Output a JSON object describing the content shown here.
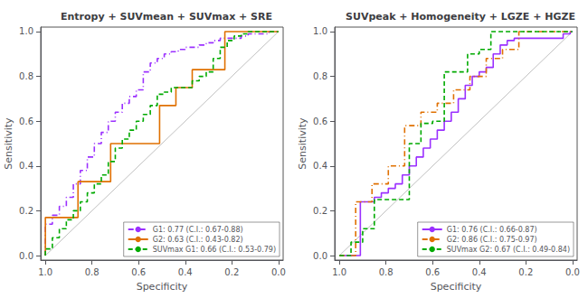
{
  "chart_data": [
    {
      "type": "step",
      "title": "Entropy + SUVmean + SUVmax + SRE",
      "xlabel": "Specificity",
      "ylabel": "Sensitivity",
      "xlim": [
        1.02,
        -0.02
      ],
      "ylim": [
        -0.02,
        1.02
      ],
      "xticks": [
        {
          "value": 1,
          "label": "1.0"
        },
        0.8,
        0.6,
        0.4,
        0.2,
        {
          "value": 0,
          "label": "0.0"
        }
      ],
      "yticks": [
        {
          "value": 0,
          "label": "0.0"
        },
        0.2,
        0.4,
        0.6,
        0.8,
        {
          "value": 1,
          "label": "1.0"
        }
      ],
      "grid": false,
      "legend": "lower right",
      "diagonal": {
        "x": [
          1,
          0
        ],
        "values": [
          0,
          1
        ],
        "color": "#C0C0C0"
      },
      "series": [
        {
          "name": "G1: 0.77 (C.I.: 0.67-0.88)",
          "color": "#9B30FF",
          "line_style": "dashdot",
          "x": [
            1.0,
            0.97,
            0.94,
            0.91,
            0.88,
            0.85,
            0.82,
            0.79,
            0.76,
            0.73,
            0.7,
            0.67,
            0.64,
            0.61,
            0.58,
            0.55,
            0.52,
            0.49,
            0.46,
            0.43,
            0.4,
            0.37,
            0.34,
            0.31,
            0.28,
            0.25,
            0.22,
            0.19,
            0.16,
            0.13,
            0.1,
            0.07,
            0.04,
            0.01,
            0.0
          ],
          "values": [
            0.0,
            0.14,
            0.18,
            0.22,
            0.26,
            0.32,
            0.38,
            0.44,
            0.5,
            0.55,
            0.6,
            0.64,
            0.68,
            0.71,
            0.74,
            0.82,
            0.86,
            0.88,
            0.9,
            0.91,
            0.92,
            0.93,
            0.93,
            0.94,
            0.95,
            0.96,
            0.97,
            0.97,
            0.97,
            0.98,
            0.99,
            0.99,
            0.99,
            1.0,
            1.0
          ]
        },
        {
          "name": "G2: 0.63 (C.I.: 0.43-0.82)",
          "color": "#E07000",
          "line_style": "solid",
          "x": [
            1.0,
            0.93,
            0.86,
            0.79,
            0.72,
            0.65,
            0.58,
            0.51,
            0.44,
            0.37,
            0.3,
            0.23,
            0.16,
            0.09,
            0.02,
            0.0
          ],
          "values": [
            0.0,
            0.17,
            0.17,
            0.33,
            0.33,
            0.5,
            0.5,
            0.5,
            0.67,
            0.75,
            0.83,
            0.83,
            1.0,
            1.0,
            1.0,
            1.0
          ]
        },
        {
          "name": "SUVmax G1: 0.66 (C.I.: 0.53-0.79)",
          "color": "#00AA00",
          "line_style": "dashed",
          "x": [
            1.0,
            0.97,
            0.94,
            0.91,
            0.88,
            0.85,
            0.82,
            0.79,
            0.76,
            0.73,
            0.7,
            0.67,
            0.64,
            0.61,
            0.58,
            0.55,
            0.52,
            0.49,
            0.46,
            0.43,
            0.4,
            0.37,
            0.34,
            0.31,
            0.28,
            0.25,
            0.22,
            0.19,
            0.16,
            0.13,
            0.1,
            0.07,
            0.04,
            0.01,
            0.0
          ],
          "values": [
            0.0,
            0.03,
            0.08,
            0.12,
            0.16,
            0.2,
            0.24,
            0.28,
            0.32,
            0.36,
            0.42,
            0.48,
            0.52,
            0.56,
            0.6,
            0.63,
            0.67,
            0.72,
            0.73,
            0.75,
            0.75,
            0.75,
            0.78,
            0.8,
            0.82,
            0.88,
            0.93,
            0.96,
            0.98,
            0.99,
            1.0,
            1.0,
            1.0,
            1.0,
            1.0
          ]
        }
      ]
    },
    {
      "type": "step",
      "title": "SUVpeak + Homogeneity + LGZE + HGZE",
      "xlabel": "Specificity",
      "ylabel": "Sensitivity",
      "xlim": [
        1.02,
        -0.02
      ],
      "ylim": [
        -0.02,
        1.02
      ],
      "xticks": [
        {
          "value": 1,
          "label": "1.0"
        },
        0.8,
        0.6,
        0.4,
        0.2,
        {
          "value": 0,
          "label": "0.0"
        }
      ],
      "yticks": [
        {
          "value": 0,
          "label": "0.0"
        },
        0.2,
        0.4,
        0.6,
        0.8,
        {
          "value": 1,
          "label": "1.0"
        }
      ],
      "grid": false,
      "legend": "lower right",
      "diagonal": {
        "x": [
          1,
          0
        ],
        "values": [
          0,
          1
        ],
        "color": "#C0C0C0"
      },
      "series": [
        {
          "name": "G1: 0.76 (C.I.: 0.66-0.87)",
          "color": "#9B30FF",
          "line_style": "solid",
          "x": [
            1.0,
            0.97,
            0.94,
            0.91,
            0.88,
            0.85,
            0.82,
            0.79,
            0.76,
            0.73,
            0.7,
            0.67,
            0.64,
            0.61,
            0.58,
            0.55,
            0.52,
            0.49,
            0.46,
            0.43,
            0.4,
            0.37,
            0.34,
            0.31,
            0.28,
            0.25,
            0.22,
            0.19,
            0.16,
            0.13,
            0.1,
            0.07,
            0.04,
            0.01,
            0.0
          ],
          "values": [
            0.0,
            0.0,
            0.0,
            0.0,
            0.24,
            0.24,
            0.26,
            0.28,
            0.3,
            0.32,
            0.36,
            0.4,
            0.44,
            0.48,
            0.52,
            0.56,
            0.6,
            0.64,
            0.7,
            0.76,
            0.8,
            0.82,
            0.84,
            0.9,
            0.94,
            0.96,
            0.97,
            0.97,
            0.97,
            0.97,
            0.97,
            0.97,
            0.97,
            0.99,
            1.0
          ]
        },
        {
          "name": "G2: 0.86 (C.I.: 0.75-0.97)",
          "color": "#E07000",
          "line_style": "dashdot",
          "x": [
            1.0,
            0.93,
            0.86,
            0.79,
            0.72,
            0.65,
            0.58,
            0.51,
            0.44,
            0.37,
            0.3,
            0.23,
            0.16,
            0.09,
            0.02,
            0.0
          ],
          "values": [
            0.0,
            0.0,
            0.24,
            0.32,
            0.4,
            0.58,
            0.64,
            0.68,
            0.74,
            0.8,
            0.88,
            0.92,
            1.0,
            1.0,
            1.0,
            1.0
          ]
        },
        {
          "name": "SUVmax G2: 0.67 (C.I.: 0.49-0.84)",
          "color": "#00AA00",
          "line_style": "dashed",
          "x": [
            1.0,
            0.95,
            0.9,
            0.85,
            0.8,
            0.75,
            0.7,
            0.65,
            0.6,
            0.55,
            0.5,
            0.45,
            0.4,
            0.35,
            0.3,
            0.25,
            0.2,
            0.15,
            0.1,
            0.05,
            0.0
          ],
          "values": [
            0.0,
            0.0,
            0.06,
            0.12,
            0.25,
            0.25,
            0.25,
            0.5,
            0.59,
            0.6,
            0.82,
            0.82,
            0.9,
            0.92,
            1.0,
            1.0,
            1.0,
            1.0,
            1.0,
            1.0,
            1.0
          ]
        }
      ]
    }
  ]
}
